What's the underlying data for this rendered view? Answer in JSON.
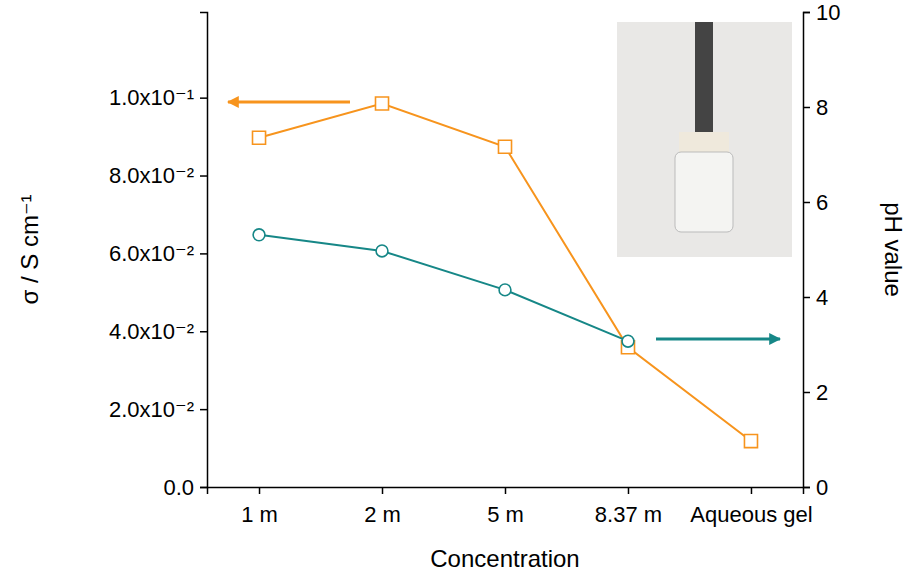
{
  "chart_data": {
    "type": "line",
    "x_label": "Concentration",
    "y_label": "σ / S cm⁻¹",
    "y2_label": "pH value",
    "categories": [
      "1 m",
      "2 m",
      "5 m",
      "8.37 m",
      "Aqueous gel"
    ],
    "ylim": [
      0,
      0.122
    ],
    "yticks": [
      {
        "value": 0,
        "label": "0.0"
      },
      {
        "value": 0.02,
        "label": "2.0x10⁻²"
      },
      {
        "value": 0.04,
        "label": "4.0x10⁻²"
      },
      {
        "value": 0.06,
        "label": "6.0x10⁻²"
      },
      {
        "value": 0.08,
        "label": "8.0x10⁻²"
      },
      {
        "value": 0.1,
        "label": "1.0x10⁻¹"
      }
    ],
    "y2lim": [
      0,
      10
    ],
    "y2ticks": [
      0,
      2,
      4,
      6,
      8,
      10
    ],
    "series": [
      {
        "color": "#f7941d",
        "marker": "square",
        "line_style": "solid",
        "values": [
          0.0897,
          0.0985,
          0.0874,
          0.0359,
          0.0118
        ]
      },
      {
        "color": "#168787",
        "marker": "circle",
        "line_style": "solid",
        "axis": "y2",
        "values": [
          5.31,
          4.97,
          4.15,
          3.07,
          null
        ]
      }
    ]
  }
}
